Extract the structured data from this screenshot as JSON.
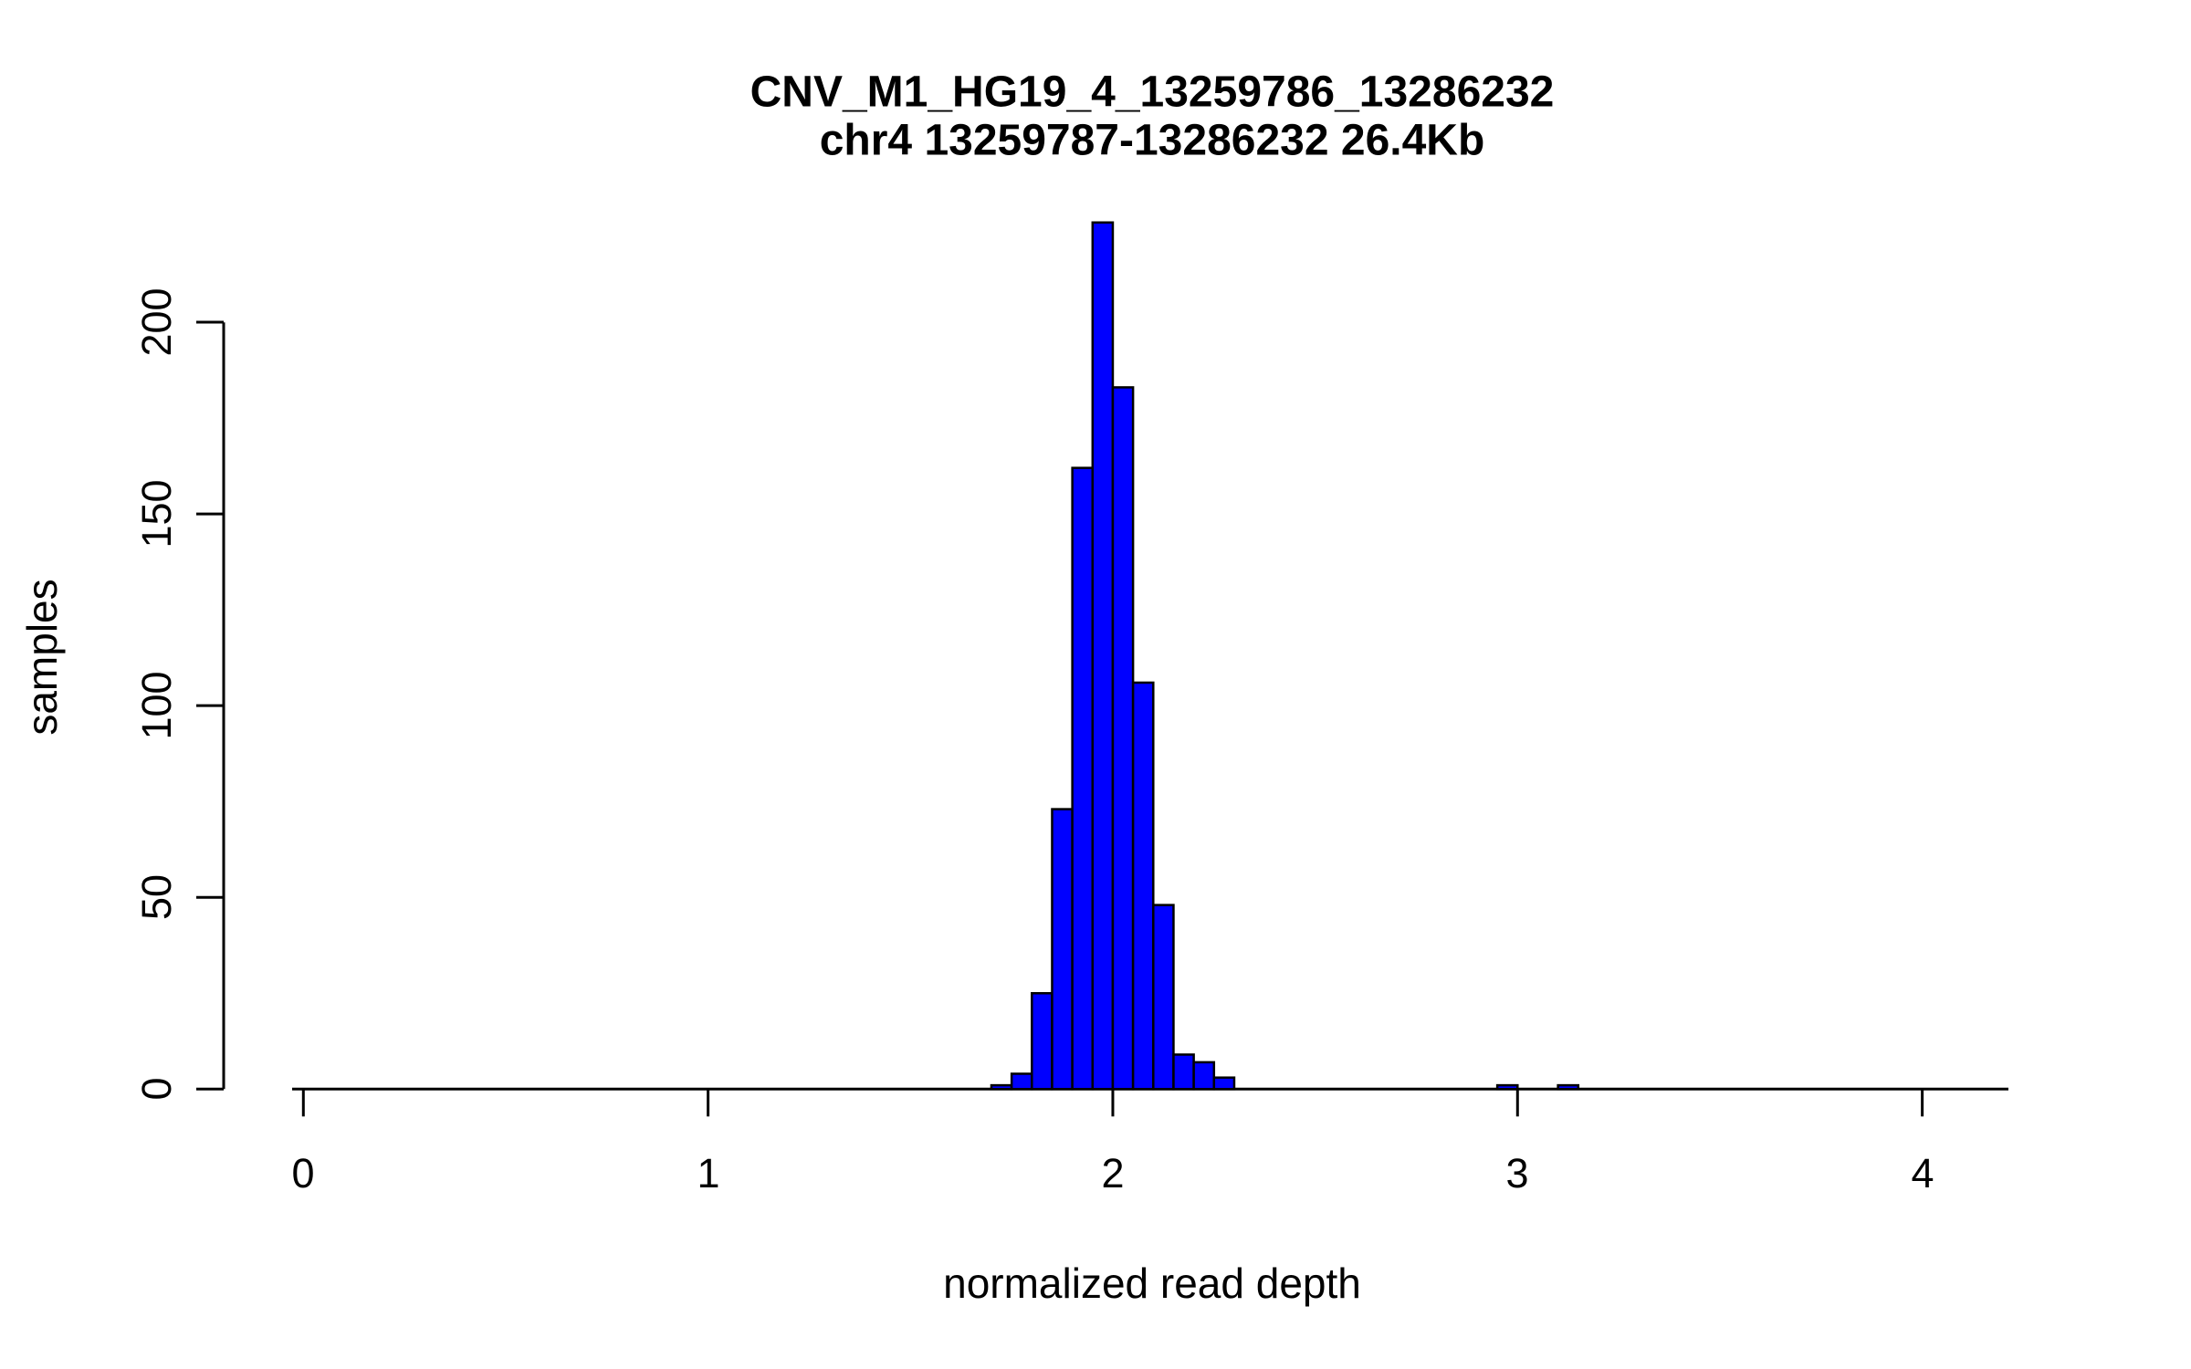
{
  "chart_data": {
    "type": "bar",
    "subtype": "histogram",
    "title": "CNV_M1_HG19_4_13259786_13286232",
    "subtitle": "chr4 13259787-13286232 26.4Kb",
    "xlabel": "normalized read depth",
    "ylabel": "samples",
    "bar_fill": "#0000ff",
    "bar_stroke": "#000000",
    "axis_color": "#000000",
    "bin_width": 0.05,
    "bins": [
      {
        "x": 1.7,
        "count": 1
      },
      {
        "x": 1.75,
        "count": 4
      },
      {
        "x": 1.8,
        "count": 25
      },
      {
        "x": 1.85,
        "count": 73
      },
      {
        "x": 1.9,
        "count": 162
      },
      {
        "x": 1.95,
        "count": 226
      },
      {
        "x": 2.0,
        "count": 183
      },
      {
        "x": 2.05,
        "count": 106
      },
      {
        "x": 2.1,
        "count": 48
      },
      {
        "x": 2.15,
        "count": 9
      },
      {
        "x": 2.2,
        "count": 7
      },
      {
        "x": 2.25,
        "count": 3
      },
      {
        "x": 2.95,
        "count": 1
      },
      {
        "x": 3.1,
        "count": 1
      }
    ],
    "x_ticks": [
      0,
      1,
      2,
      3,
      4
    ],
    "y_ticks": [
      0,
      50,
      100,
      150,
      200
    ],
    "xlim": [
      0,
      4.2
    ],
    "ylim": [
      0,
      226
    ],
    "grid": false,
    "legend": false
  }
}
